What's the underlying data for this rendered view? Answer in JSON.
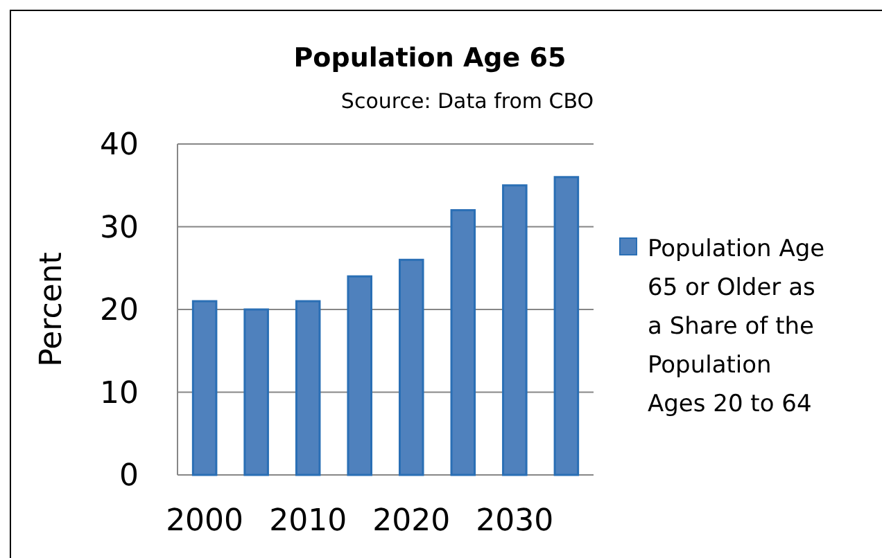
{
  "chart_data": {
    "type": "bar",
    "title": "Population Age 65",
    "subtitle": "Scource: Data from CBO",
    "ylabel": "Percent",
    "categories": [
      "2000",
      null,
      "2010",
      null,
      "2020",
      null,
      "2030",
      null
    ],
    "series": [
      {
        "name": "Population Age 65 or Older as a Share of the Population Ages 20 to 64",
        "color": "#4f81bd",
        "values": [
          21,
          20,
          21,
          24,
          26,
          32,
          35,
          36
        ]
      }
    ],
    "ylim": [
      0,
      40
    ],
    "yticks": [
      0,
      10,
      20,
      30,
      40
    ],
    "grid": "y",
    "legend": "right"
  }
}
